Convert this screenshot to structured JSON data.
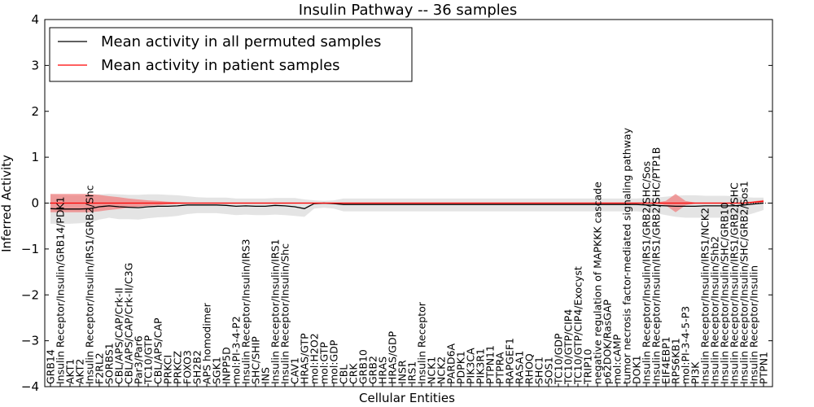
{
  "chart_data": {
    "type": "line",
    "title": "Insulin Pathway -- 36 samples",
    "xlabel": "Cellular Entities",
    "ylabel": "Inferred Activity",
    "ylim": [
      -4,
      4
    ],
    "yticks": [
      -4,
      -3,
      -2,
      -1,
      0,
      1,
      2,
      3,
      4
    ],
    "grid": false,
    "legend_position": "top-left",
    "categories": [
      "GRB14",
      "Insulin Receptor/Insulin/GRB14/PDK1",
      "AKT1",
      "AKT2",
      "Insulin Receptor/Insulin/IRS1/GRB2/Shc",
      "F2RL2",
      "SORBS1",
      "CBL/APS/CAP/Crk-II",
      "CBL/APS/CAP/Crk-II/C3G",
      "Par3/Par6",
      "TC10/GTP",
      "CBL/APS/CAP",
      "PRKCI",
      "PRKCZ",
      "FOXO3",
      "SH2B2",
      "APS homodimer",
      "SGK1",
      "INPP5D",
      "mol:PI-3-4-P2",
      "Insulin Receptor/Insulin/IRS3",
      "SHC/SHIP",
      "INS",
      "Insulin Receptor/Insulin/IRS1",
      "Insulin Receptor/Insulin/Shc",
      "CAV1",
      "HRAS/GTP",
      "mol:H2O2",
      "mol:GTP",
      "mol:GDP",
      "CBL",
      "CRK",
      "GRB10",
      "GRB2",
      "HRAS",
      "HRAS/GDP",
      "INSR",
      "IRS1",
      "Insulin Receptor",
      "NCK1",
      "NCK2",
      "PARD6A",
      "PDPK1",
      "PIK3CA",
      "PIK3R1",
      "PTPN11",
      "PTPRA",
      "RAPGEF1",
      "RASA1",
      "RHOQ",
      "SHC1",
      "SOS1",
      "TC10/GDP",
      "TC10/GTP/CIP4",
      "TC10/GTP/CIP4/Exocyst",
      "TRIP10",
      "negative regulation of MAPKKK cascade",
      "p62DOK/RasGAP",
      "mol:cAMP",
      "tumor necrosis factor-mediated signaling pathway",
      "DOK1",
      "Insulin Receptor/Insulin/IRS1/GRB2/SHC/Sos",
      "Insulin Receptor/Insulin/IRS1/GRB2/SHC/PTP1B",
      "EIF4EBP1",
      "RPS6KB1",
      "mol:PI-3-4-5-P3",
      "PI3K",
      "Insulin Receptor/Insulin/IRS1/NCK2",
      "Insulin Receptor/Insulin/Shb2",
      "Insulin Receptor/Insulin/SHC/GRB10",
      "Insulin Receptor/Insulin/IRS1/GRB2/SHC",
      "Insulin Receptor/Insulin/SHC/GRB2/Sos1",
      "Insulin Receptor/Insulin",
      "PTPN1"
    ],
    "series": [
      {
        "name": "Mean activity in all permuted samples",
        "color": "#000000",
        "values": [
          -0.12,
          -0.13,
          -0.13,
          -0.13,
          -0.12,
          -0.08,
          -0.06,
          -0.08,
          -0.09,
          -0.1,
          -0.08,
          -0.07,
          -0.07,
          -0.06,
          -0.04,
          -0.04,
          -0.04,
          -0.04,
          -0.05,
          -0.07,
          -0.06,
          -0.07,
          -0.07,
          -0.05,
          -0.06,
          -0.08,
          -0.12,
          -0.01,
          0.0,
          -0.01,
          -0.03,
          -0.03,
          -0.03,
          -0.03,
          -0.03,
          -0.03,
          -0.03,
          -0.03,
          -0.03,
          -0.03,
          -0.03,
          -0.03,
          -0.03,
          -0.03,
          -0.03,
          -0.03,
          -0.03,
          -0.03,
          -0.03,
          -0.03,
          -0.03,
          -0.03,
          -0.03,
          -0.03,
          -0.03,
          -0.03,
          -0.03,
          -0.03,
          -0.03,
          -0.03,
          -0.03,
          -0.04,
          -0.05,
          -0.06,
          -0.07,
          -0.07,
          -0.07,
          -0.06,
          -0.06,
          -0.06,
          -0.06,
          -0.04,
          -0.02,
          0.0
        ],
        "band_low": [
          -0.45,
          -0.45,
          -0.45,
          -0.44,
          -0.42,
          -0.36,
          -0.32,
          -0.35,
          -0.35,
          -0.36,
          -0.33,
          -0.31,
          -0.3,
          -0.28,
          -0.24,
          -0.22,
          -0.22,
          -0.22,
          -0.24,
          -0.26,
          -0.25,
          -0.26,
          -0.26,
          -0.25,
          -0.26,
          -0.28,
          -0.3,
          -0.12,
          -0.1,
          -0.12,
          -0.18,
          -0.18,
          -0.18,
          -0.18,
          -0.18,
          -0.18,
          -0.18,
          -0.18,
          -0.18,
          -0.18,
          -0.18,
          -0.18,
          -0.18,
          -0.18,
          -0.18,
          -0.18,
          -0.18,
          -0.18,
          -0.18,
          -0.18,
          -0.18,
          -0.18,
          -0.18,
          -0.18,
          -0.18,
          -0.18,
          -0.18,
          -0.18,
          -0.18,
          -0.18,
          -0.18,
          -0.2,
          -0.22,
          -0.26,
          -0.3,
          -0.32,
          -0.32,
          -0.32,
          -0.32,
          -0.32,
          -0.32,
          -0.28,
          -0.22,
          -0.15
        ],
        "band_high": [
          0.18,
          0.17,
          0.16,
          0.16,
          0.17,
          0.19,
          0.2,
          0.19,
          0.18,
          0.18,
          0.19,
          0.19,
          0.18,
          0.17,
          0.15,
          0.13,
          0.12,
          0.12,
          0.12,
          0.1,
          0.1,
          0.1,
          0.1,
          0.11,
          0.11,
          0.11,
          0.08,
          0.06,
          0.05,
          0.06,
          0.1,
          0.1,
          0.1,
          0.1,
          0.1,
          0.1,
          0.1,
          0.1,
          0.1,
          0.1,
          0.1,
          0.1,
          0.1,
          0.1,
          0.1,
          0.1,
          0.1,
          0.1,
          0.1,
          0.1,
          0.1,
          0.1,
          0.1,
          0.1,
          0.1,
          0.1,
          0.1,
          0.1,
          0.1,
          0.1,
          0.1,
          0.11,
          0.12,
          0.14,
          0.16,
          0.17,
          0.17,
          0.16,
          0.16,
          0.16,
          0.15,
          0.13,
          0.12,
          0.12
        ]
      },
      {
        "name": "Mean activity in patient samples",
        "color": "#ff0000",
        "values": [
          0.0,
          0.0,
          0.0,
          0.0,
          0.0,
          0.0,
          0.0,
          0.0,
          0.0,
          0.0,
          0.0,
          0.0,
          0.0,
          0.0,
          0.0,
          0.0,
          0.0,
          0.0,
          0.0,
          0.0,
          0.0,
          0.0,
          0.0,
          0.0,
          0.0,
          0.0,
          0.0,
          0.0,
          0.0,
          0.0,
          0.0,
          0.0,
          0.0,
          0.0,
          0.0,
          0.0,
          0.0,
          0.0,
          0.0,
          0.0,
          0.0,
          0.0,
          0.0,
          0.0,
          0.0,
          0.0,
          0.0,
          0.0,
          0.0,
          0.0,
          0.0,
          0.0,
          0.0,
          0.0,
          0.0,
          0.0,
          0.0,
          0.0,
          0.0,
          0.0,
          0.0,
          0.0,
          0.0,
          0.0,
          0.0,
          0.0,
          0.0,
          0.0,
          0.0,
          0.0,
          0.0,
          0.0,
          0.02,
          0.04
        ],
        "band_low": [
          -0.2,
          -0.2,
          -0.2,
          -0.2,
          -0.2,
          -0.18,
          -0.15,
          -0.13,
          -0.1,
          -0.08,
          -0.06,
          -0.05,
          -0.03,
          -0.02,
          -0.01,
          -0.01,
          -0.01,
          -0.01,
          -0.01,
          -0.01,
          -0.01,
          -0.01,
          -0.01,
          -0.01,
          -0.01,
          -0.01,
          -0.01,
          -0.01,
          -0.01,
          -0.01,
          -0.01,
          -0.01,
          -0.01,
          -0.01,
          -0.01,
          -0.01,
          -0.01,
          -0.01,
          -0.01,
          -0.01,
          -0.01,
          -0.01,
          -0.01,
          -0.01,
          -0.01,
          -0.01,
          -0.01,
          -0.01,
          -0.01,
          -0.01,
          -0.01,
          -0.01,
          -0.01,
          -0.01,
          -0.01,
          -0.01,
          -0.01,
          -0.01,
          -0.01,
          -0.01,
          -0.01,
          -0.01,
          -0.01,
          -0.05,
          -0.2,
          -0.05,
          -0.01,
          -0.01,
          -0.01,
          -0.01,
          -0.01,
          -0.01,
          0.0,
          0.01
        ],
        "band_high": [
          0.2,
          0.2,
          0.2,
          0.2,
          0.2,
          0.18,
          0.15,
          0.13,
          0.1,
          0.08,
          0.06,
          0.05,
          0.03,
          0.02,
          0.01,
          0.01,
          0.01,
          0.01,
          0.01,
          0.01,
          0.01,
          0.01,
          0.01,
          0.01,
          0.01,
          0.01,
          0.01,
          0.01,
          0.01,
          0.01,
          0.01,
          0.01,
          0.01,
          0.01,
          0.01,
          0.01,
          0.01,
          0.01,
          0.01,
          0.01,
          0.01,
          0.01,
          0.01,
          0.01,
          0.01,
          0.01,
          0.01,
          0.01,
          0.01,
          0.01,
          0.01,
          0.01,
          0.01,
          0.01,
          0.01,
          0.01,
          0.01,
          0.01,
          0.01,
          0.01,
          0.01,
          0.01,
          0.01,
          0.05,
          0.2,
          0.05,
          0.01,
          0.01,
          0.01,
          0.01,
          0.01,
          0.01,
          0.04,
          0.07
        ]
      }
    ]
  },
  "colors": {
    "permuted_band": "#d9d9d9",
    "patient_band": "#f08080",
    "axis": "#000000"
  }
}
